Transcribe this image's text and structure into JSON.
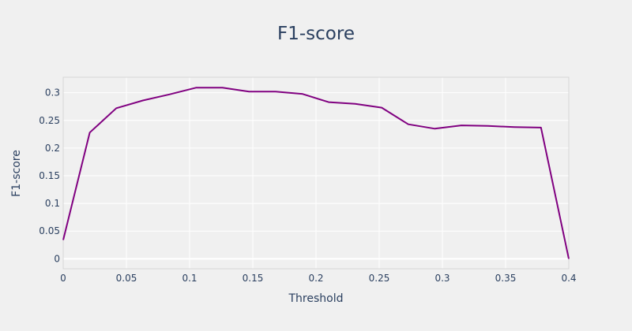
{
  "chart_data": {
    "type": "line",
    "title": "F1-score",
    "xlabel": "Threshold",
    "ylabel": "F1-score",
    "xlim": [
      0,
      0.4
    ],
    "ylim": [
      -0.018,
      0.328
    ],
    "xticks": [
      0,
      0.05,
      0.1,
      0.15,
      0.2,
      0.25,
      0.3,
      0.35,
      0.4
    ],
    "xtick_labels": [
      "0",
      "0.05",
      "0.1",
      "0.15",
      "0.2",
      "0.25",
      "0.3",
      "0.35",
      "0.4"
    ],
    "yticks": [
      0,
      0.05,
      0.1,
      0.15,
      0.2,
      0.25,
      0.3
    ],
    "ytick_labels": [
      "0",
      "0.05",
      "0.1",
      "0.15",
      "0.2",
      "0.25",
      "0.3"
    ],
    "grid": true,
    "colors": {
      "line": "#800080",
      "background": "#f0f0f0",
      "grid": "#ffffff",
      "text": "#2a3f5f"
    },
    "series": [
      {
        "x": [
          0,
          0.021,
          0.042,
          0.063,
          0.084,
          0.105,
          0.126,
          0.147,
          0.168,
          0.189,
          0.21,
          0.231,
          0.252,
          0.273,
          0.294,
          0.315,
          0.336,
          0.357,
          0.378,
          0.4
        ],
        "values": [
          0.034,
          0.228,
          0.272,
          0.286,
          0.297,
          0.309,
          0.309,
          0.302,
          0.302,
          0.298,
          0.283,
          0.28,
          0.273,
          0.243,
          0.235,
          0.241,
          0.24,
          0.238,
          0.237,
          0.0
        ]
      }
    ]
  }
}
